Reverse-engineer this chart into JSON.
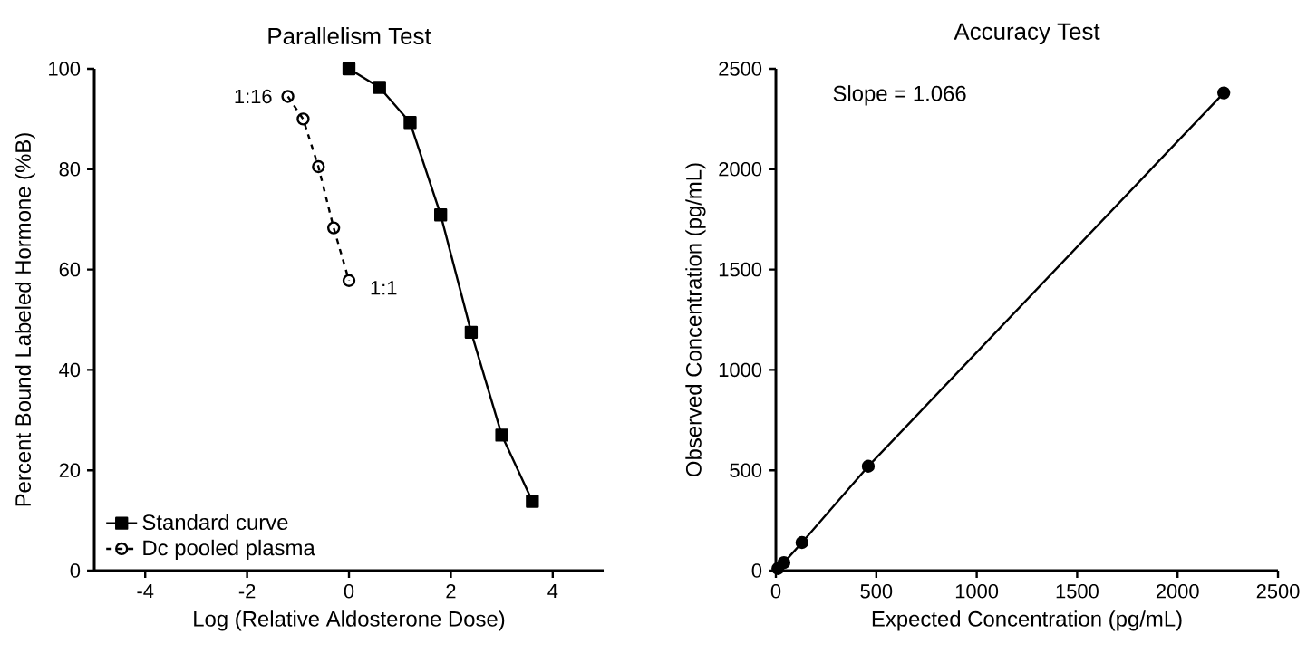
{
  "chart_data": [
    {
      "type": "line",
      "title": "Parallelism Test",
      "xlabel": "Log (Relative Aldosterone Dose)",
      "ylabel": "Percent Bound Labeled Hormone (%B)",
      "xlim": [
        -5,
        5
      ],
      "xticks": [
        -4,
        -2,
        0,
        2,
        4
      ],
      "ylim": [
        0,
        100
      ],
      "yticks": [
        0,
        20,
        40,
        60,
        80,
        100
      ],
      "series": [
        {
          "name": "Standard curve",
          "color": "#000000",
          "marker": "square",
          "line_style": "solid",
          "x": [
            0,
            0.6,
            1.2,
            1.8,
            2.4,
            3.0,
            3.6
          ],
          "values": [
            100,
            96.3,
            89.3,
            70.9,
            47.5,
            27,
            13.8
          ]
        },
        {
          "name": "Dc pooled plasma",
          "color": "#000000",
          "marker": "circle",
          "line_style": "dashed",
          "x": [
            -1.2,
            -0.9,
            -0.6,
            -0.3,
            0
          ],
          "values": [
            94.5,
            90,
            80.5,
            68.3,
            57.8
          ]
        }
      ],
      "annotations": [
        {
          "text": "1:16",
          "x": -1.2,
          "y": 94.5
        },
        {
          "text": "1:1",
          "x": 0,
          "y": 57.8
        }
      ],
      "legend": "bottom left",
      "grid": false
    },
    {
      "type": "line",
      "title": "Accuracy Test",
      "xlabel": "Expected Concentration (pg/mL)",
      "ylabel": "Observed Concentration (pg/mL)",
      "xlim": [
        0,
        2500
      ],
      "xticks": [
        0,
        500,
        1000,
        1500,
        2000,
        2500
      ],
      "ylim": [
        0,
        2500
      ],
      "yticks": [
        0,
        500,
        1000,
        1500,
        2000,
        2500
      ],
      "series": [
        {
          "color": "#000000",
          "marker": "circle",
          "line_style": "solid",
          "x": [
            10,
            40,
            130,
            460,
            2230
          ],
          "values": [
            10,
            40,
            140,
            520,
            2380
          ]
        }
      ],
      "annotations": [
        "Slope = 1.066"
      ],
      "legend": false,
      "grid": false
    }
  ]
}
